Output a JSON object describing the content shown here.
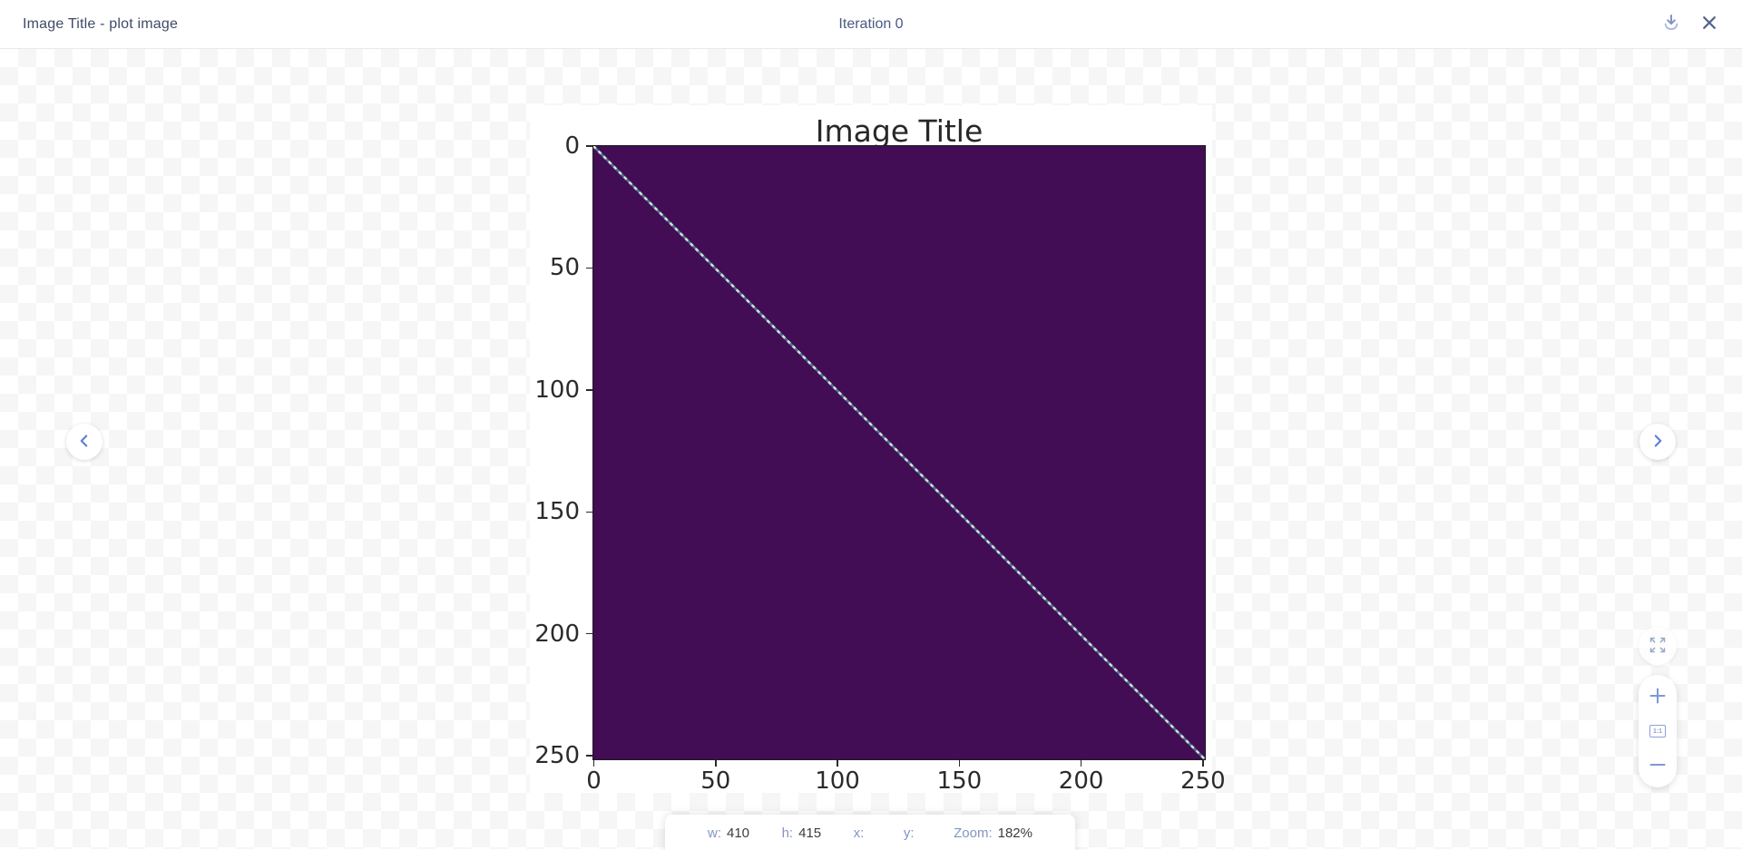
{
  "header": {
    "title": "Image Title - plot image",
    "center_label": "Iteration 0",
    "download_icon": "download-icon",
    "close_icon": "close-icon"
  },
  "navigation": {
    "prev_icon": "chevron-left-icon",
    "next_icon": "chevron-right-icon"
  },
  "viewer_controls": {
    "fullscreen_icon": "fullscreen-expand-icon",
    "zoom_in_icon": "plus-icon",
    "actual_size_label": "1:1",
    "zoom_out_icon": "minus-icon"
  },
  "status_bar": {
    "fields": [
      {
        "label": "w:",
        "value": "410"
      },
      {
        "label": "h:",
        "value": "415"
      },
      {
        "label": "x:",
        "value": ""
      },
      {
        "label": "y:",
        "value": ""
      },
      {
        "label": "Zoom:",
        "value": "182%"
      }
    ]
  },
  "chart_data": {
    "type": "heatmap",
    "title": "Image Title",
    "x_ticks": [
      0,
      50,
      100,
      150,
      200,
      250
    ],
    "y_ticks": [
      0,
      50,
      100,
      150,
      200,
      250
    ],
    "xlim": [
      0,
      252
    ],
    "ylim": [
      252,
      0
    ],
    "colormap": "viridis",
    "pattern": "identity-matrix style: uniform low-value dark purple field with a thin high-value light diagonal running from top-left (0,0) to bottom-right (~252,252)",
    "background_value_color": "#420d54",
    "diagonal_colors": [
      "#d3ded6",
      "#4d7693"
    ],
    "grid": false,
    "legend": false
  },
  "colors": {
    "accent_blue": "#5f80d6",
    "control_blue": "#7e98d4",
    "status_label_blue": "#8296c2",
    "heatmap_purple": "#420d54",
    "checker_gray": "#f6f6f6"
  }
}
